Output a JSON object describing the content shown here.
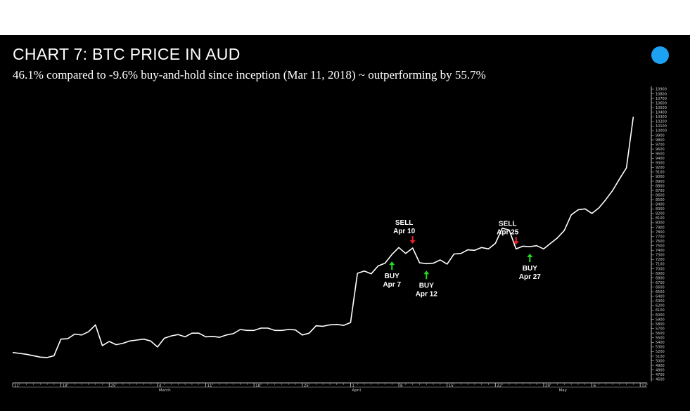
{
  "title": "CHART 7: BTC PRICE IN AUD",
  "subtitle": "46.1% compared to -9.6% buy-and-hold since inception (Mar 11, 2018) ~ outperforming by 55.7%",
  "colors": {
    "panel": "#000000",
    "line": "#ffffff",
    "buy": "#22dd22",
    "sell": "#ee2222",
    "brand_dot": "#1da1f2"
  },
  "chart_data": {
    "type": "line",
    "x_axis": {
      "ticks": [
        {
          "label": "11",
          "x": 11,
          "sub": ""
        },
        {
          "label": "18",
          "x": 18,
          "sub": ""
        },
        {
          "label": "25",
          "x": 25,
          "sub": ""
        },
        {
          "label": "4",
          "x": 32,
          "sub": "March"
        },
        {
          "label": "11",
          "x": 39,
          "sub": ""
        },
        {
          "label": "18",
          "x": 46,
          "sub": ""
        },
        {
          "label": "25",
          "x": 53,
          "sub": ""
        },
        {
          "label": "1",
          "x": 60,
          "sub": "April"
        },
        {
          "label": "8",
          "x": 67,
          "sub": ""
        },
        {
          "label": "15",
          "x": 74,
          "sub": ""
        },
        {
          "label": "22",
          "x": 81,
          "sub": ""
        },
        {
          "label": "29",
          "x": 88,
          "sub": ""
        },
        {
          "label": "",
          "x": 90,
          "sub": "May"
        },
        {
          "label": "6",
          "x": 95,
          "sub": ""
        },
        {
          "label": "13",
          "x": 102,
          "sub": ""
        }
      ],
      "xlim": [
        11,
        103
      ]
    },
    "y_axis": {
      "ylim": [
        4550,
        10960
      ],
      "tick_start": 4600,
      "tick_end": 10900,
      "tick_step": 100
    },
    "series": [
      {
        "x": [
          11,
          12,
          13,
          14,
          15,
          16,
          17,
          18,
          19,
          20,
          21,
          22,
          23,
          24,
          25,
          26,
          27,
          28,
          29,
          30,
          31,
          32,
          33,
          34,
          35,
          36,
          37,
          38,
          39,
          40,
          41,
          42,
          43,
          44,
          45,
          46,
          47,
          48,
          49,
          50,
          51,
          52,
          53,
          54,
          55,
          56,
          57,
          58,
          59,
          60,
          61,
          62,
          63,
          64,
          65,
          66,
          67,
          68,
          69,
          70,
          71,
          72,
          73,
          74,
          75,
          76,
          77,
          78,
          79,
          80,
          81,
          82,
          83,
          84,
          85,
          86,
          87,
          88,
          89,
          90,
          91,
          92,
          93,
          94,
          95,
          96,
          97,
          98,
          99,
          100,
          101
        ],
        "y": [
          5180,
          5160,
          5140,
          5110,
          5080,
          5070,
          5110,
          5470,
          5480,
          5580,
          5560,
          5630,
          5780,
          5330,
          5420,
          5350,
          5380,
          5430,
          5450,
          5470,
          5430,
          5300,
          5490,
          5540,
          5570,
          5520,
          5600,
          5600,
          5520,
          5530,
          5510,
          5560,
          5590,
          5680,
          5660,
          5660,
          5710,
          5710,
          5660,
          5660,
          5680,
          5670,
          5560,
          5600,
          5760,
          5750,
          5780,
          5790,
          5770,
          5830,
          6900,
          6950,
          6890,
          7060,
          7120,
          7310,
          7460,
          7330,
          7450,
          7130,
          7110,
          7120,
          7190,
          7100,
          7320,
          7330,
          7410,
          7400,
          7460,
          7430,
          7550,
          7880,
          7840,
          7430,
          7490,
          7480,
          7500,
          7430,
          7550,
          7670,
          7830,
          8170,
          8280,
          8300,
          8200,
          8320,
          8500,
          8700,
          8950,
          9190,
          10300
        ]
      }
    ],
    "annotations": [
      {
        "type": "buy",
        "line1": "BUY",
        "line2": "Apr 7",
        "x": 66
      },
      {
        "type": "sell",
        "line1": "SELL",
        "line2": "Apr 10",
        "x": 69
      },
      {
        "type": "buy",
        "line1": "BUY",
        "line2": "Apr 12",
        "x": 71
      },
      {
        "type": "sell",
        "line1": "SELL",
        "line2": "Apr 25",
        "x": 84
      },
      {
        "type": "buy",
        "line1": "BUY",
        "line2": "Apr 27",
        "x": 86
      }
    ]
  }
}
